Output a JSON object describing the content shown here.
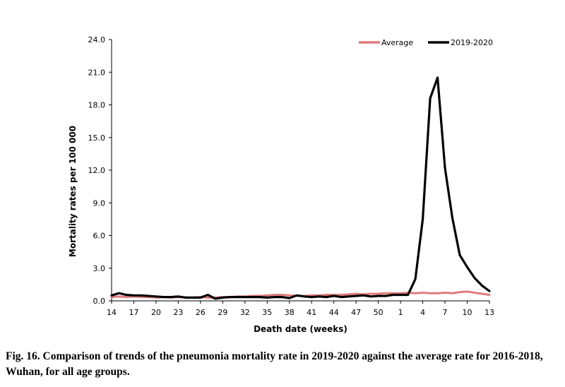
{
  "caption": "Fig. 16. Comparison of trends of the pneumonia mortality rate in 2019-2020 against the average rate for 2016-2018, Wuhan, for all age groups.",
  "chart_data": {
    "type": "line",
    "xlabel": "Death date (weeks)",
    "ylabel": "Mortality rates per 100 000",
    "ylim": [
      0,
      24
    ],
    "yticks": [
      "0.0",
      "3.0",
      "6.0",
      "9.0",
      "12.0",
      "15.0",
      "18.0",
      "21.0",
      "24.0"
    ],
    "xticks": [
      "14",
      "17",
      "20",
      "23",
      "26",
      "29",
      "32",
      "35",
      "38",
      "41",
      "44",
      "47",
      "50",
      "1",
      "4",
      "7",
      "10",
      "13"
    ],
    "x": [
      "14",
      "15",
      "16",
      "17",
      "18",
      "19",
      "20",
      "21",
      "22",
      "23",
      "24",
      "25",
      "26",
      "27",
      "28",
      "29",
      "30",
      "31",
      "32",
      "33",
      "34",
      "35",
      "36",
      "37",
      "38",
      "39",
      "40",
      "41",
      "42",
      "43",
      "44",
      "45",
      "46",
      "47",
      "48",
      "49",
      "50",
      "51",
      "52",
      "1",
      "2",
      "3",
      "4",
      "5",
      "6",
      "7",
      "8",
      "9",
      "10",
      "11",
      "12",
      "13"
    ],
    "legend_position": "top-right",
    "grid": false,
    "series": [
      {
        "name": "Average",
        "color": "#e07b7b",
        "values": [
          0.35,
          0.4,
          0.35,
          0.4,
          0.35,
          0.35,
          0.3,
          0.35,
          0.3,
          0.35,
          0.3,
          0.3,
          0.35,
          0.3,
          0.3,
          0.35,
          0.35,
          0.4,
          0.4,
          0.45,
          0.45,
          0.5,
          0.55,
          0.55,
          0.5,
          0.45,
          0.45,
          0.5,
          0.5,
          0.55,
          0.55,
          0.55,
          0.6,
          0.65,
          0.6,
          0.65,
          0.65,
          0.7,
          0.7,
          0.7,
          0.75,
          0.7,
          0.75,
          0.7,
          0.7,
          0.75,
          0.7,
          0.8,
          0.85,
          0.75,
          0.65,
          0.55
        ]
      },
      {
        "name": "2019-2020",
        "color": "#000000",
        "values": [
          0.5,
          0.7,
          0.55,
          0.5,
          0.5,
          0.45,
          0.4,
          0.35,
          0.35,
          0.4,
          0.3,
          0.3,
          0.3,
          0.55,
          0.2,
          0.3,
          0.35,
          0.35,
          0.35,
          0.35,
          0.35,
          0.3,
          0.35,
          0.35,
          0.25,
          0.5,
          0.4,
          0.35,
          0.4,
          0.35,
          0.45,
          0.35,
          0.4,
          0.45,
          0.5,
          0.4,
          0.45,
          0.45,
          0.55,
          0.55,
          0.55,
          2.0,
          7.5,
          18.6,
          20.5,
          12.2,
          7.6,
          4.2,
          3.1,
          2.1,
          1.4,
          0.9
        ]
      }
    ]
  }
}
